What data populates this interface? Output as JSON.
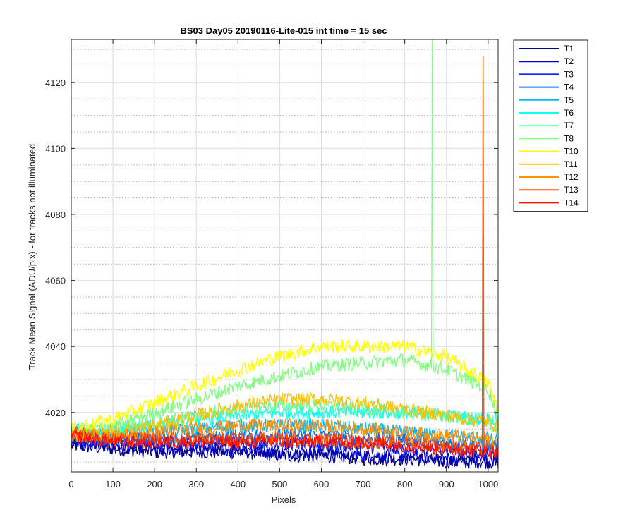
{
  "chart_data": {
    "type": "line",
    "title": "BS03 Day05 20190116-Lite-015 int time = 15 sec",
    "xlabel": "Pixels",
    "ylabel": "Track Mean Signal (ADU/pix) - for tracks not illuminated",
    "xlim": [
      0,
      1024
    ],
    "ylim": [
      4002,
      4133
    ],
    "xticks": [
      0,
      100,
      200,
      300,
      400,
      500,
      600,
      700,
      800,
      900,
      1000
    ],
    "yticks": [
      4020,
      4040,
      4060,
      4080,
      4100,
      4120
    ],
    "grid": "major solid, minor dotted",
    "legend_position": "outside-top-right",
    "x_sample_points": [
      0,
      100,
      200,
      300,
      400,
      500,
      600,
      700,
      800,
      900,
      1000,
      1024
    ],
    "series": [
      {
        "name": "T1",
        "color": "#00008f",
        "values": [
          4010,
          4009,
          4008,
          4008,
          4008,
          4007,
          4007,
          4006,
          4006,
          4005,
          4005,
          4005
        ]
      },
      {
        "name": "T2",
        "color": "#0000c8",
        "values": [
          4011,
          4010,
          4009,
          4009,
          4009,
          4008,
          4008,
          4007,
          4007,
          4006,
          4006,
          4006
        ]
      },
      {
        "name": "T3",
        "color": "#0020ff",
        "values": [
          4012,
          4011,
          4011,
          4011,
          4011,
          4011,
          4010,
          4010,
          4009,
          4009,
          4008,
          4008
        ]
      },
      {
        "name": "T4",
        "color": "#0070ff",
        "values": [
          4013,
          4012,
          4012,
          4012,
          4013,
          4013,
          4013,
          4012,
          4012,
          4011,
          4010,
          4010
        ]
      },
      {
        "name": "T5",
        "color": "#00b8ff",
        "values": [
          4014,
          4013,
          4014,
          4015,
          4016,
          4016,
          4016,
          4015,
          4014,
          4013,
          4012,
          4011
        ]
      },
      {
        "name": "T6",
        "color": "#10ffef",
        "values": [
          4015,
          4014,
          4016,
          4018,
          4019,
          4020,
          4020,
          4020,
          4020,
          4019,
          4018,
          4018
        ]
      },
      {
        "name": "T7",
        "color": "#60ffa0",
        "values": [
          4014,
          4015,
          4017,
          4019,
          4021,
          4022,
          4022,
          4021,
          4020,
          4019,
          4017,
          4015
        ]
      },
      {
        "name": "T8",
        "color": "#80ff80",
        "values": [
          4014,
          4016,
          4020,
          4024,
          4028,
          4031,
          4034,
          4035,
          4036,
          4033,
          4027,
          4019
        ]
      },
      {
        "name": "T10",
        "color": "#ffff00",
        "values": [
          4015,
          4018,
          4023,
          4028,
          4033,
          4037,
          4040,
          4040,
          4040,
          4037,
          4029,
          4021
        ]
      },
      {
        "name": "T11",
        "color": "#ffc000",
        "values": [
          4013,
          4014,
          4016,
          4019,
          4022,
          4024,
          4024,
          4023,
          4021,
          4019,
          4017,
          4016
        ]
      },
      {
        "name": "T12",
        "color": "#ff9000",
        "values": [
          4013,
          4013,
          4014,
          4015,
          4016,
          4016,
          4016,
          4015,
          4014,
          4013,
          4012,
          4011
        ]
      },
      {
        "name": "T13",
        "color": "#ff5000",
        "values": [
          4014,
          4012,
          4012,
          4012,
          4012,
          4012,
          4012,
          4011,
          4011,
          4010,
          4009,
          4008
        ]
      },
      {
        "name": "T14",
        "color": "#ff1000",
        "values": [
          4013,
          4011,
          4011,
          4011,
          4011,
          4011,
          4011,
          4011,
          4010,
          4009,
          4008,
          4008
        ]
      }
    ],
    "spikes": [
      {
        "series": "T8",
        "x": 866,
        "y": 4133
      },
      {
        "series": "T13",
        "x": 988,
        "y": 4128
      }
    ]
  }
}
